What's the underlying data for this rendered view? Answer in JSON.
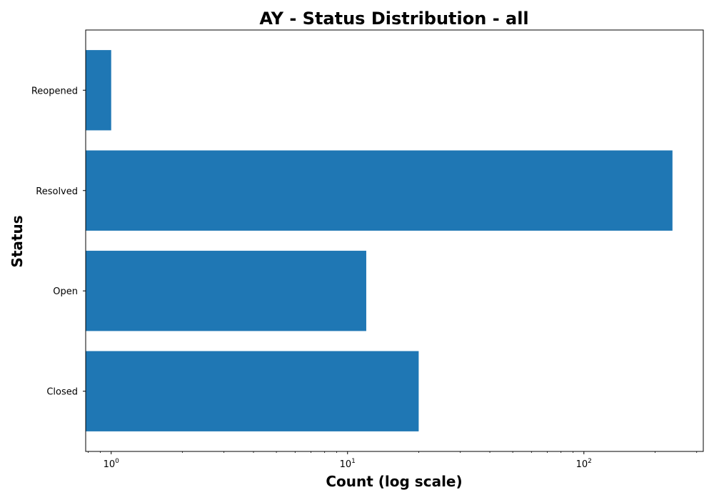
{
  "chart_data": {
    "type": "bar",
    "orientation": "horizontal",
    "title": "AY - Status Distribution - all",
    "xlabel": "Count (log scale)",
    "ylabel": "Status",
    "x_scale": "log",
    "xlim": [
      0.78,
      320
    ],
    "categories": [
      "Closed",
      "Open",
      "Resolved",
      "Reopened"
    ],
    "values": [
      20,
      12,
      237,
      1
    ],
    "x_ticks": [
      {
        "base": "10",
        "exp": "0",
        "value": 1
      },
      {
        "base": "10",
        "exp": "1",
        "value": 10
      },
      {
        "base": "10",
        "exp": "2",
        "value": 100
      }
    ],
    "bar_color": "#1f77b4",
    "grid": false,
    "legend": "none"
  }
}
